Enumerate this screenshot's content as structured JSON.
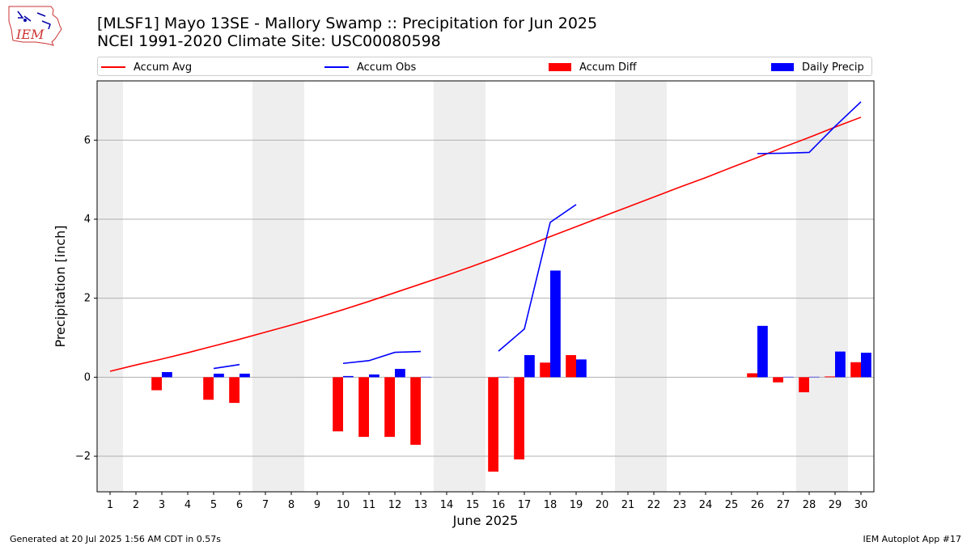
{
  "logo": {
    "text": "IEM"
  },
  "title": {
    "line1": "[MLSF1] Mayo 13SE - Mallory Swamp :: Precipitation for Jun 2025",
    "line2": "NCEI 1991-2020 Climate Site: USC00080598"
  },
  "legend": {
    "accum_avg": "Accum Avg",
    "accum_obs": "Accum Obs",
    "accum_diff": "Accum Diff",
    "daily_precip": "Daily Precip"
  },
  "colors": {
    "avg": "#ff0000",
    "obs": "#0000ff",
    "diff": "#ff0000",
    "daily": "#0000ff",
    "weekend": "#eeeeee",
    "grid": "#b0b0b0"
  },
  "chart_data": {
    "type": "bar",
    "xlabel": "June 2025",
    "ylabel": "Precipitation [inch]",
    "xlim": [
      0.5,
      30.5
    ],
    "ylim": [
      -2.9,
      7.5
    ],
    "yticks": [
      -2,
      0,
      2,
      4,
      6
    ],
    "ytick_labels": [
      "−2",
      "0",
      "2",
      "4",
      "6"
    ],
    "x": [
      1,
      2,
      3,
      4,
      5,
      6,
      7,
      8,
      9,
      10,
      11,
      12,
      13,
      14,
      15,
      16,
      17,
      18,
      19,
      20,
      21,
      22,
      23,
      24,
      25,
      26,
      27,
      28,
      29,
      30
    ],
    "weekend_days": [
      1,
      7,
      8,
      14,
      15,
      21,
      22,
      28,
      29
    ],
    "grid": true,
    "legend_position": "top",
    "series": [
      {
        "name": "Accum Avg",
        "kind": "line",
        "values": [
          0.15,
          0.31,
          0.46,
          0.62,
          0.79,
          0.96,
          1.14,
          1.32,
          1.51,
          1.71,
          1.92,
          2.14,
          2.36,
          2.58,
          2.81,
          3.05,
          3.3,
          3.56,
          3.81,
          4.06,
          4.31,
          4.56,
          4.81,
          5.05,
          5.31,
          5.56,
          5.82,
          6.07,
          6.33,
          6.58
        ]
      },
      {
        "name": "Accum Obs",
        "kind": "line",
        "values": [
          null,
          null,
          null,
          null,
          0.22,
          0.32,
          null,
          null,
          null,
          0.35,
          0.42,
          0.63,
          0.65,
          null,
          null,
          0.66,
          1.22,
          3.92,
          4.37,
          null,
          null,
          null,
          null,
          null,
          null,
          5.66,
          5.67,
          5.69,
          6.35,
          6.97
        ]
      },
      {
        "name": "Accum Diff",
        "kind": "bar",
        "values": [
          null,
          null,
          -0.33,
          null,
          -0.57,
          -0.65,
          null,
          null,
          null,
          -1.37,
          -1.51,
          -1.51,
          -1.71,
          null,
          null,
          -2.39,
          -2.08,
          0.37,
          0.56,
          null,
          null,
          null,
          null,
          null,
          null,
          0.1,
          -0.13,
          -0.38,
          0.02,
          0.38
        ]
      },
      {
        "name": "Daily Precip",
        "kind": "bar",
        "values": [
          null,
          null,
          0.13,
          null,
          0.09,
          0.09,
          null,
          null,
          null,
          0.03,
          0.07,
          0.21,
          0.01,
          null,
          null,
          0.01,
          0.56,
          2.7,
          0.45,
          null,
          null,
          null,
          null,
          null,
          null,
          1.3,
          0.01,
          0.01,
          0.65,
          0.62
        ]
      }
    ]
  },
  "footer": {
    "left": "Generated at 20 Jul 2025 1:56 AM CDT in 0.57s",
    "right": "IEM Autoplot App #17"
  }
}
